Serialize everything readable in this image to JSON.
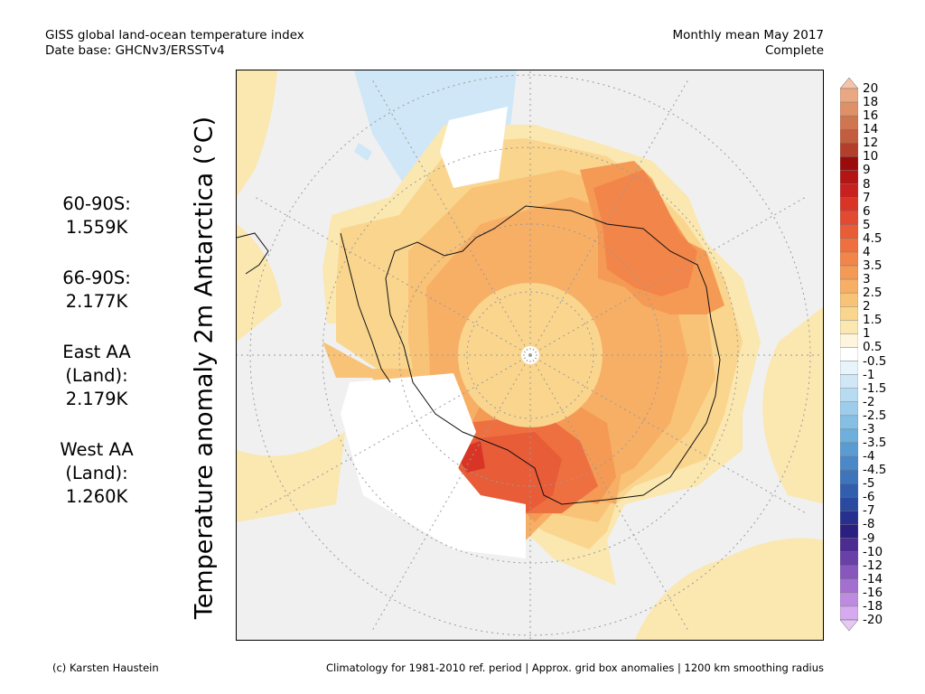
{
  "header": {
    "title": "GISS global land-ocean temperature index",
    "database": "Date base: GHCNv3/ERSSTv4",
    "period": "Monthly mean May 2017",
    "status": "Complete"
  },
  "stats": [
    {
      "region": "60-90S:",
      "value": "1.559K"
    },
    {
      "region": "66-90S:",
      "value": "2.177K"
    },
    {
      "region": "East AA",
      "region2": "(Land):",
      "value": "2.179K"
    },
    {
      "region": "West AA",
      "region2": "(Land):",
      "value": "1.260K"
    }
  ],
  "axis_label": "Temperature anomaly 2m Antarctica (°C)",
  "footer": {
    "credit": "(c) Karsten Haustein",
    "note": "Climatology for 1981-2010 ref. period | Approx. grid box anomalies | 1200 km smoothing radius"
  },
  "colorbar": {
    "labels": [
      "20",
      "18",
      "16",
      "14",
      "12",
      "10",
      "9",
      "8",
      "7",
      "6",
      "5",
      "4.5",
      "4",
      "3.5",
      "3",
      "2.5",
      "2",
      "1.5",
      "1",
      "0.5",
      "-0.5",
      "-1",
      "-1.5",
      "-2",
      "-2.5",
      "-3",
      "-3.5",
      "-4",
      "-4.5",
      "-5",
      "-6",
      "-7",
      "-8",
      "-9",
      "-10",
      "-12",
      "-14",
      "-16",
      "-18",
      "-20"
    ],
    "colors": [
      "#f4c3a8",
      "#e9a782",
      "#de9067",
      "#cf7550",
      "#c25e3d",
      "#b23f2c",
      "#9a0c0c",
      "#b31515",
      "#c81f1f",
      "#d83527",
      "#e24a32",
      "#e85c37",
      "#ee7040",
      "#f28549",
      "#f49a55",
      "#f7af66",
      "#f8c277",
      "#fad58e",
      "#fbe7b0",
      "#fdf5dd",
      "#ffffff",
      "#e8f4fb",
      "#cfe7f6",
      "#b7dbf1",
      "#9ecdeb",
      "#86bfe4",
      "#6eafdc",
      "#5a9cd2",
      "#4a88c7",
      "#3d74ba",
      "#325fad",
      "#2a4aa0",
      "#27308e",
      "#2b1f80",
      "#4a2c93",
      "#6840a8",
      "#8757bd",
      "#a370cf",
      "#bd8ce0",
      "#d5aaee",
      "#e6c8f6"
    ]
  },
  "map": {
    "background": "#f0f0f0",
    "missing_color": "#ffffff",
    "ocean_light_blue": "#cfe7f6",
    "land_pale": "#fbe7b0",
    "grid_color": "#9a9a9a",
    "outline": "antarctica-coastline"
  }
}
